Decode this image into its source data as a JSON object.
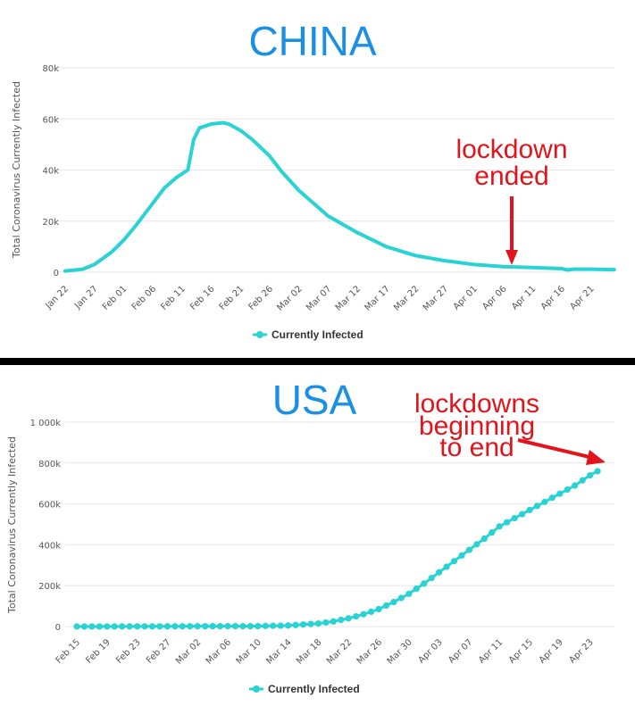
{
  "chart_data": [
    {
      "type": "line",
      "title": "CHINA",
      "ylabel": "Total Coronavirus Currently Infected",
      "ylim": [
        0,
        80000
      ],
      "y_ticks": [
        0,
        20000,
        40000,
        60000,
        80000
      ],
      "y_tick_labels": [
        "0",
        "20k",
        "40k",
        "60k",
        "80k"
      ],
      "x_tick_labels": [
        "Jan 22",
        "Jan 27",
        "Feb 01",
        "Feb 06",
        "Feb 11",
        "Feb 16",
        "Feb 21",
        "Feb 26",
        "Mar 02",
        "Mar 07",
        "Mar 12",
        "Mar 17",
        "Mar 22",
        "Mar 27",
        "Apr 01",
        "Apr 06",
        "Apr 11",
        "Apr 16",
        "Apr 21"
      ],
      "grid": true,
      "legend": "bottom-center",
      "color": "#2ad3d3",
      "annotation": {
        "line1": "lockdown",
        "line2": "ended",
        "x": "Apr 08"
      },
      "series": [
        {
          "name": "Currently Infected",
          "x": [
            "Jan 22",
            "Jan 25",
            "Jan 27",
            "Jan 30",
            "Feb 01",
            "Feb 03",
            "Feb 06",
            "Feb 08",
            "Feb 10",
            "Feb 12",
            "Feb 13",
            "Feb 14",
            "Feb 16",
            "Feb 18",
            "Feb 19",
            "Feb 21",
            "Feb 23",
            "Feb 26",
            "Feb 28",
            "Mar 02",
            "Mar 07",
            "Mar 12",
            "Mar 17",
            "Mar 22",
            "Mar 27",
            "Apr 01",
            "Apr 06",
            "Apr 11",
            "Apr 16",
            "Apr 17",
            "Apr 18",
            "Apr 21",
            "Apr 25"
          ],
          "values": [
            500,
            1200,
            3000,
            8000,
            12500,
            18000,
            27000,
            33000,
            37000,
            40000,
            52000,
            56500,
            58000,
            58500,
            58000,
            55500,
            52000,
            45500,
            39500,
            32000,
            22000,
            15500,
            10000,
            6500,
            4500,
            3000,
            2200,
            1800,
            1400,
            900,
            1200,
            1200,
            1000
          ]
        }
      ]
    },
    {
      "type": "line",
      "title": "USA",
      "ylabel": "Total Coronavirus Currently Infected",
      "ylim": [
        0,
        1000000
      ],
      "y_ticks": [
        0,
        200000,
        400000,
        600000,
        800000,
        1000000
      ],
      "y_tick_labels": [
        "0",
        "200k",
        "400k",
        "600k",
        "800k",
        "1 000k"
      ],
      "x_tick_labels": [
        "Feb 15",
        "Feb 19",
        "Feb 23",
        "Feb 27",
        "Mar 02",
        "Mar 06",
        "Mar 10",
        "Mar 14",
        "Mar 18",
        "Mar 22",
        "Mar 26",
        "Mar 30",
        "Apr 03",
        "Apr 07",
        "Apr 11",
        "Apr 15",
        "Apr 19",
        "Apr 23"
      ],
      "grid": true,
      "legend": "bottom-center",
      "color": "#2ad3d3",
      "annotation": {
        "line1": "lockdowns",
        "line2": "beginning",
        "line3": "to end"
      },
      "series": [
        {
          "name": "Currently Infected",
          "x": [
            "Feb 15",
            "Mar 10",
            "Mar 14",
            "Mar 18",
            "Mar 20",
            "Mar 22",
            "Mar 24",
            "Mar 26",
            "Mar 28",
            "Mar 30",
            "Apr 01",
            "Apr 03",
            "Apr 05",
            "Apr 07",
            "Apr 09",
            "Apr 11",
            "Apr 13",
            "Apr 15",
            "Apr 17",
            "Apr 19",
            "Apr 21",
            "Apr 23",
            "Apr 24"
          ],
          "values": [
            0,
            2000,
            5000,
            15000,
            25000,
            40000,
            60000,
            85000,
            120000,
            160000,
            210000,
            265000,
            320000,
            375000,
            430000,
            490000,
            530000,
            570000,
            610000,
            650000,
            690000,
            740000,
            760000
          ]
        }
      ]
    }
  ]
}
